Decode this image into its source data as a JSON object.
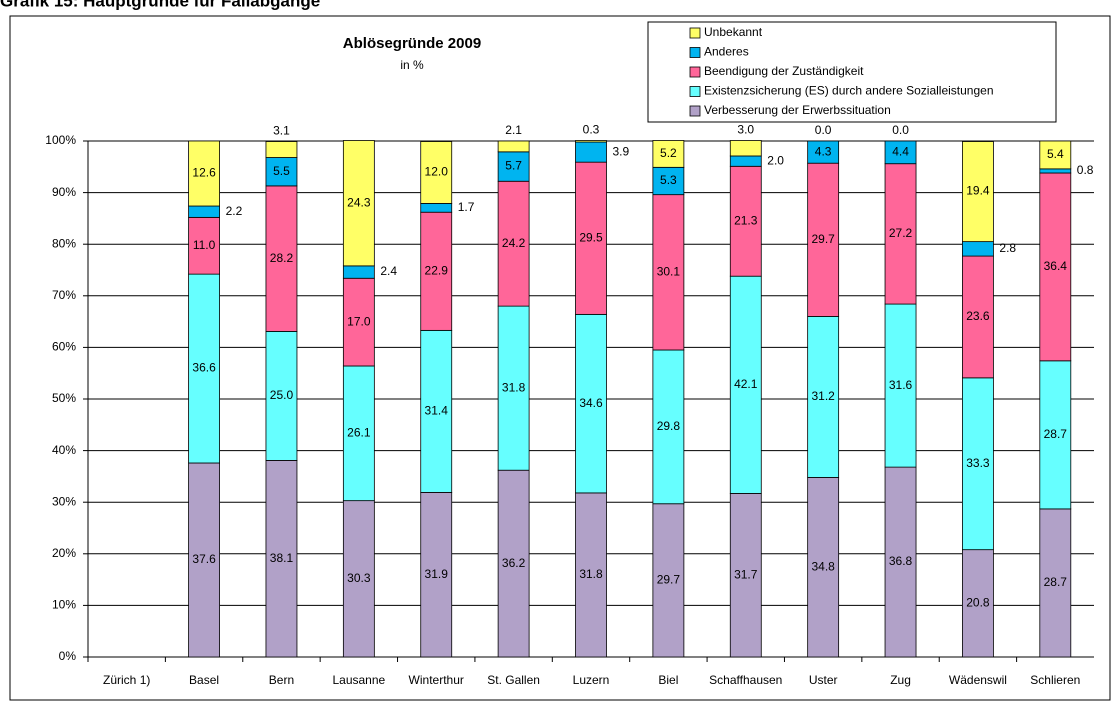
{
  "heading": "Grafik 15: Hauptgründe für Fallabgänge",
  "chart_data": {
    "type": "stacked_bar",
    "title": "Ablösegründe 2009",
    "subtitle": "in %",
    "categories": [
      "Zürich  1)",
      "Basel",
      "Bern",
      "Lausanne",
      "Winterthur",
      "St. Gallen",
      "Luzern",
      "Biel",
      "Schaffhausen",
      "Uster",
      "Zug",
      "Wädenswil",
      "Schlieren"
    ],
    "series": [
      {
        "name": "Verbesserung der Erwerbssituation",
        "color": "#b1a1c8",
        "values": [
          null,
          37.6,
          38.1,
          30.3,
          31.9,
          36.2,
          31.8,
          29.7,
          31.7,
          34.8,
          36.8,
          20.8,
          28.7
        ],
        "value_labels": [
          null,
          "37.6",
          "38.1",
          "30.3",
          "31.9",
          "36.2",
          "31.8",
          "29.7",
          "31.7",
          "34.8",
          "36.8",
          "20.8",
          "28.7"
        ]
      },
      {
        "name": "Existenzsicherung (ES) durch andere Sozialleistungen",
        "color": "#66ffff",
        "values": [
          null,
          36.6,
          25.0,
          26.1,
          31.4,
          31.8,
          34.6,
          29.8,
          42.1,
          31.2,
          31.6,
          33.3,
          28.7
        ],
        "value_labels": [
          null,
          "36.6",
          "25.0",
          "26.1",
          "31.4",
          "31.8",
          "34.6",
          "29.8",
          "42.1",
          "31.2",
          "31.6",
          "33.3",
          "28.7"
        ]
      },
      {
        "name": "Beendigung der Zuständigkeit",
        "color": "#ff6699",
        "values": [
          null,
          11.0,
          28.2,
          17.0,
          22.9,
          24.2,
          29.5,
          30.1,
          21.3,
          29.7,
          27.2,
          23.6,
          36.4
        ],
        "value_labels": [
          null,
          "11.0",
          "28.2",
          "17.0",
          "22.9",
          "24.2",
          "29.5",
          "30.1",
          "21.3",
          "29.7",
          "27.2",
          "23.6",
          "36.4"
        ]
      },
      {
        "name": "Anderes",
        "color": "#00b4f0",
        "values": [
          null,
          2.2,
          5.5,
          2.4,
          1.7,
          5.7,
          3.9,
          5.3,
          2.0,
          4.3,
          4.4,
          2.8,
          0.8
        ],
        "value_labels": [
          null,
          "2.2",
          "5.5",
          "2.4",
          "1.7",
          "5.7",
          "3.9",
          "5.3",
          "2.0",
          "4.3",
          "4.4",
          "2.8",
          "0.8"
        ]
      },
      {
        "name": "Unbekannt",
        "color": "#ffff66",
        "values": [
          null,
          12.6,
          3.1,
          24.3,
          12.0,
          2.1,
          0.3,
          5.2,
          3.0,
          0.0,
          0.0,
          19.4,
          5.4
        ],
        "value_labels": [
          null,
          "12.6",
          "3.1",
          "24.3",
          "12.0",
          "2.1",
          "0.3",
          "5.2",
          "3.0",
          "0.0",
          "0.0",
          "19.4",
          "5.4"
        ]
      }
    ],
    "ylim": [
      0,
      100
    ],
    "yticks": [
      {
        "value": 0,
        "label": "0%"
      },
      {
        "value": 10,
        "label": "10%"
      },
      {
        "value": 20,
        "label": "20%"
      },
      {
        "value": 30,
        "label": "30%"
      },
      {
        "value": 40,
        "label": "40%"
      },
      {
        "value": 50,
        "label": "50%"
      },
      {
        "value": 60,
        "label": "60%"
      },
      {
        "value": 70,
        "label": "70%"
      },
      {
        "value": 80,
        "label": "80%"
      },
      {
        "value": 90,
        "label": "90%"
      },
      {
        "value": 100,
        "label": "100%"
      }
    ],
    "grid": true,
    "legend": "top-right"
  }
}
